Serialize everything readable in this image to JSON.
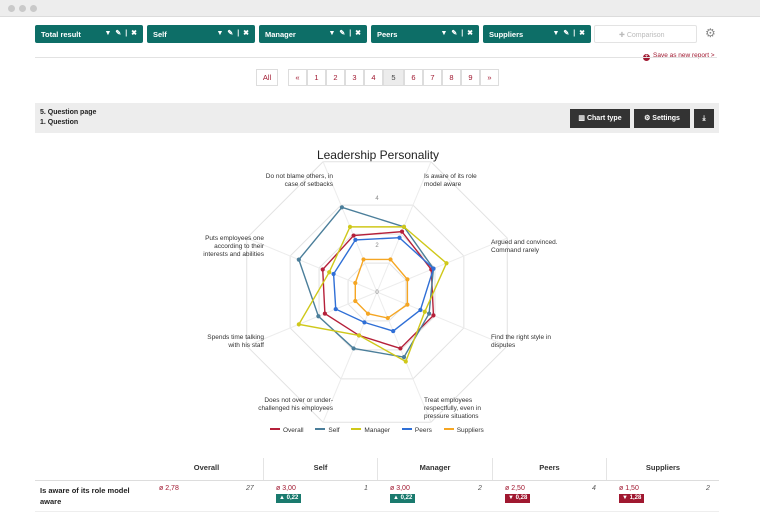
{
  "filters": [
    {
      "label": "Total result"
    },
    {
      "label": "Self"
    },
    {
      "label": "Manager"
    },
    {
      "label": "Peers"
    },
    {
      "label": "Suppliers"
    }
  ],
  "comparison_placeholder": "Comparison",
  "save_label": "Save as new report >",
  "pagination": {
    "all": "All",
    "prev": "«",
    "next": "»",
    "pages": [
      "1",
      "2",
      "3",
      "4",
      "5",
      "6",
      "7",
      "8",
      "9"
    ],
    "current": "5"
  },
  "question": {
    "page": "5. Question page",
    "title": "1. Question"
  },
  "buttons": {
    "chart_type": "Chart type",
    "settings": "Settings"
  },
  "chart_data": {
    "type": "radar",
    "title": "Leadership Personality",
    "axes": [
      "Is aware of its role model aware",
      "Argued and convinced. Command rarely",
      "Find the right style in disputes",
      "Treat employees respectfully, even in pressure situations",
      "Does not over or under-challenged his employees",
      "Spends time talking with his staff",
      "Puts employees one according to their interests and abilities",
      "Do not blame others, in case of setbacks"
    ],
    "scale_labels": [
      "0",
      "2",
      "4"
    ],
    "rmax": 4,
    "series": [
      {
        "name": "Overall",
        "color": "#b5203a",
        "values": [
          2.78,
          2.5,
          2.6,
          2.6,
          2.0,
          2.4,
          2.5,
          2.6
        ]
      },
      {
        "name": "Self",
        "color": "#4b7e9a",
        "values": [
          3.0,
          2.6,
          2.4,
          3.0,
          2.6,
          2.7,
          3.6,
          3.9
        ]
      },
      {
        "name": "Manager",
        "color": "#cfc81a",
        "values": [
          3.0,
          3.2,
          2.2,
          3.2,
          2.0,
          3.6,
          2.2,
          3.0
        ]
      },
      {
        "name": "Peers",
        "color": "#2f6fd6",
        "values": [
          2.5,
          2.6,
          2.0,
          1.8,
          1.4,
          1.9,
          2.0,
          2.4
        ]
      },
      {
        "name": "Suppliers",
        "color": "#f5a623",
        "values": [
          1.5,
          1.4,
          1.4,
          1.2,
          1.0,
          1.0,
          1.0,
          1.5
        ]
      }
    ]
  },
  "table": {
    "headers": [
      "Overall",
      "Self",
      "Manager",
      "Peers",
      "Suppliers"
    ],
    "row_label": "Is aware of its role model aware",
    "cells": [
      {
        "avg": "ø 2,78",
        "count": "27",
        "delta": ""
      },
      {
        "avg": "ø 3,00",
        "count": "1",
        "delta": "▲ 0,22"
      },
      {
        "avg": "ø 3,00",
        "count": "2",
        "delta": "▲ 0,22"
      },
      {
        "avg": "ø 2,50",
        "count": "4",
        "delta": "▼ 0,28"
      },
      {
        "avg": "ø 1,50",
        "count": "2",
        "delta": "▼ 1,28"
      }
    ]
  },
  "colors": {
    "teal": "#0d6e67",
    "accent": "#a01830",
    "green": "#1a7a6e"
  }
}
